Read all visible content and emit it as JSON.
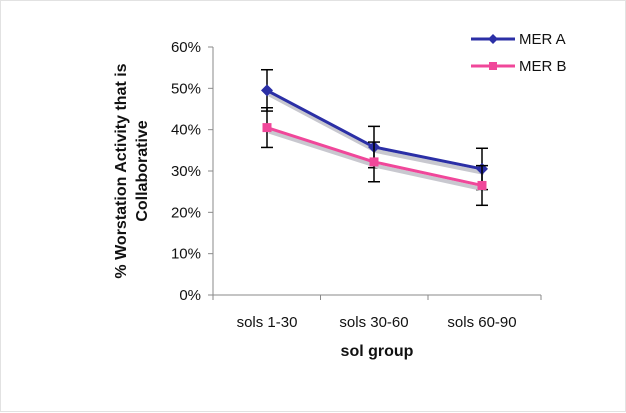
{
  "chart_data": {
    "type": "line",
    "categories": [
      "sols 1-30",
      "sols 30-60",
      "sols 60-90"
    ],
    "xlabel": "sol group",
    "ylabel": [
      "% Worstation Activity that is",
      "Collaborative"
    ],
    "ylim": [
      0,
      0.6
    ],
    "y_ticks": [
      {
        "value": 0.0,
        "label": "0%"
      },
      {
        "value": 0.1,
        "label": "10%"
      },
      {
        "value": 0.2,
        "label": "20%"
      },
      {
        "value": 0.3,
        "label": "30%"
      },
      {
        "value": 0.4,
        "label": "40%"
      },
      {
        "value": 0.5,
        "label": "50%"
      },
      {
        "value": 0.6,
        "label": "60%"
      }
    ],
    "grid": false,
    "legend_position": "top-right",
    "error_bars": true,
    "series": [
      {
        "name": "MER A",
        "color": "#2b2fa6",
        "marker": "diamond",
        "values": [
          0.495,
          0.358,
          0.305
        ],
        "errors": [
          0.05,
          0.05,
          0.05
        ]
      },
      {
        "name": "MER B",
        "color": "#f0479a",
        "marker": "square",
        "values": [
          0.405,
          0.322,
          0.265
        ],
        "errors": [
          0.048,
          0.048,
          0.048
        ]
      }
    ]
  }
}
